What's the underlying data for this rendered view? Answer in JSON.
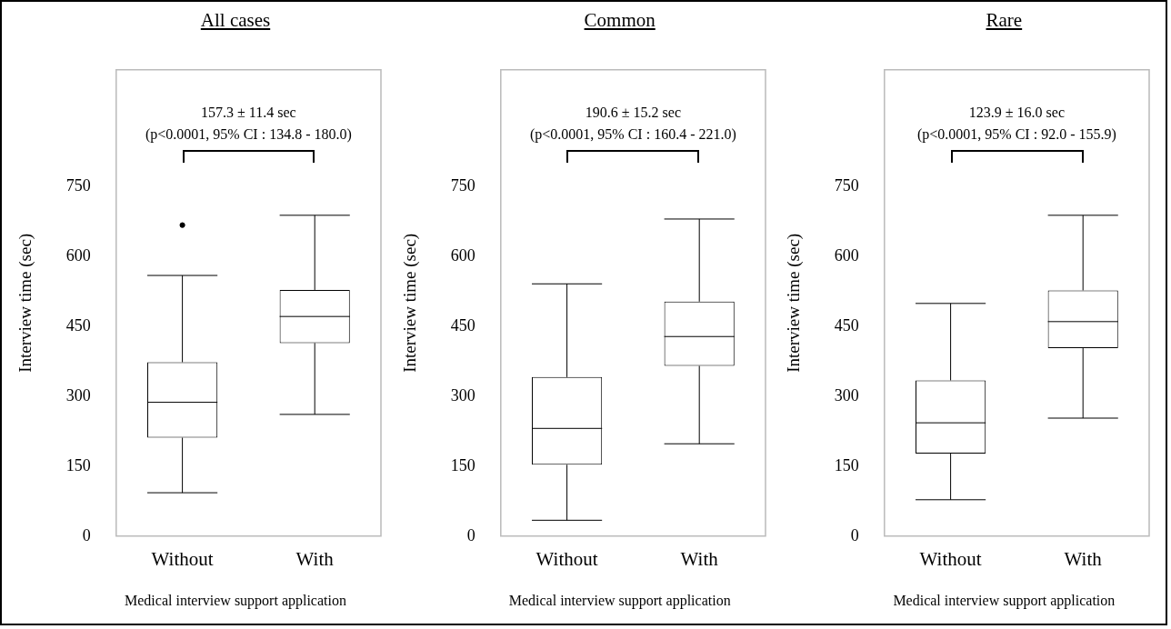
{
  "chart_data": [
    {
      "type": "box",
      "title": "All cases",
      "xlabel": "Medical interview support application",
      "ylabel": "Interview time (sec)",
      "categories": [
        "Without",
        "With"
      ],
      "boxes": [
        {
          "low": 93,
          "q1": 211,
          "median": 287,
          "q3": 373,
          "high": 559,
          "outliers": [
            667
          ]
        },
        {
          "low": 261,
          "q1": 414,
          "median": 471,
          "q3": 528,
          "high": 688
        }
      ],
      "ylim": [
        0,
        1000
      ],
      "yticks": [
        0,
        150,
        300,
        450,
        600,
        750
      ],
      "annotations": [
        "157.3 ± 11.4 sec",
        "(p<0.0001, 95% CI : 134.8 - 180.0)"
      ]
    },
    {
      "type": "box",
      "title": "Common",
      "xlabel": "Medical interview support application",
      "ylabel": "Interview time (sec)",
      "categories": [
        "Without",
        "With"
      ],
      "boxes": [
        {
          "low": 34,
          "q1": 153,
          "median": 231,
          "q3": 341,
          "high": 541
        },
        {
          "low": 198,
          "q1": 365,
          "median": 428,
          "q3": 503,
          "high": 680
        }
      ],
      "ylim": [
        0,
        1000
      ],
      "yticks": [
        0,
        150,
        300,
        450,
        600,
        750
      ],
      "annotations": [
        "190.6 ± 15.2 sec",
        "(p<0.0001, 95% CI : 160.4 - 221.0)"
      ]
    },
    {
      "type": "box",
      "title": "Rare",
      "xlabel": "Medical interview support application",
      "ylabel": "Interview time (sec)",
      "categories": [
        "Without",
        "With"
      ],
      "boxes": [
        {
          "low": 78,
          "q1": 177,
          "median": 243,
          "q3": 334,
          "high": 499
        },
        {
          "low": 253,
          "q1": 403,
          "median": 460,
          "q3": 527,
          "high": 688
        }
      ],
      "ylim": [
        0,
        1000
      ],
      "yticks": [
        0,
        150,
        300,
        450,
        600,
        750
      ],
      "annotations": [
        "123.9 ± 16.0 sec",
        "(p<0.0001, 95% CI : 92.0 - 155.9)"
      ]
    }
  ]
}
